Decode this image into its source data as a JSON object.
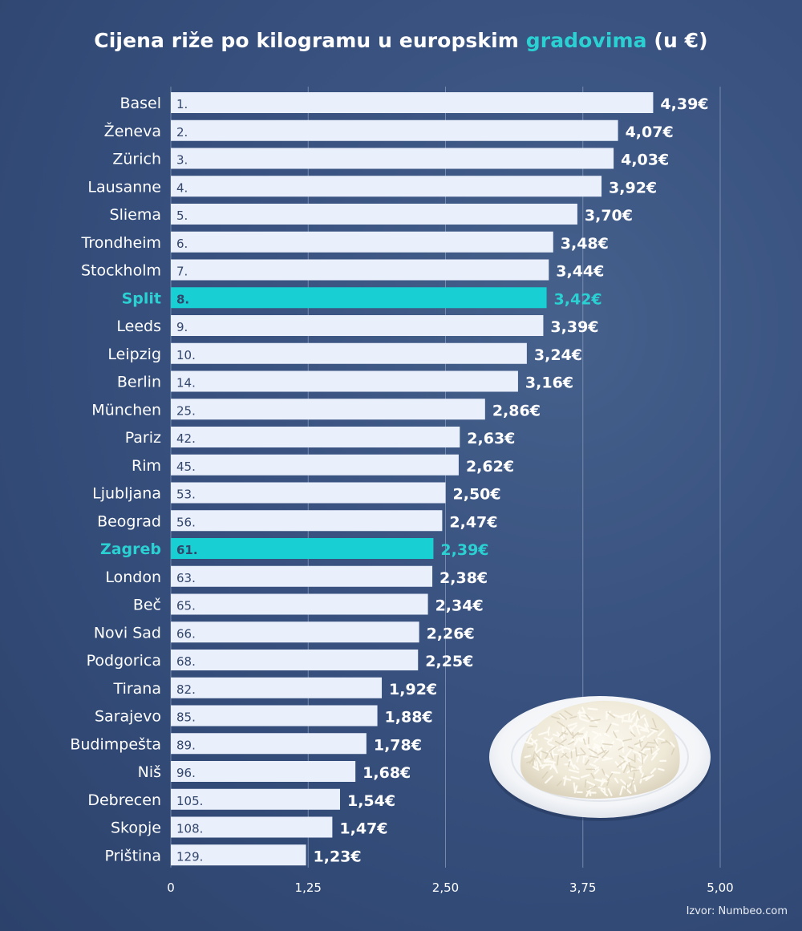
{
  "title": {
    "prefix": "Cijena riže po kilogramu u europskim ",
    "highlight": "gradovima",
    "suffix": " (u €)"
  },
  "source": "Izvor: Numbeo.com",
  "colors": {
    "bar": "#e9effb",
    "bar_highlight": "#18d0d4",
    "label": "#ffffff",
    "label_highlight": "#2ad0d2",
    "rank_text": "#33466b",
    "grid": "#8497b8"
  },
  "plate_icon": "plate-of-rice-icon",
  "chart_data": {
    "type": "bar",
    "orientation": "horizontal",
    "title": "Cijena riže po kilogramu u europskim gradovima (u €)",
    "xlim": [
      0,
      5
    ],
    "xticks": [
      0,
      1.25,
      2.5,
      3.75,
      5
    ],
    "xtick_labels": [
      "0",
      "1,25",
      "2,50",
      "3,75",
      "5,00"
    ],
    "grid": true,
    "categories": [
      "Basel",
      "Ženeva",
      "Zürich",
      "Lausanne",
      "Sliema",
      "Trondheim",
      "Stockholm",
      "Split",
      "Leeds",
      "Leipzig",
      "Berlin",
      "München",
      "Pariz",
      "Rim",
      "Ljubljana",
      "Beograd",
      "Zagreb",
      "London",
      "Beč",
      "Novi Sad",
      "Podgorica",
      "Tirana",
      "Sarajevo",
      "Budimpešta",
      "Niš",
      "Debrecen",
      "Skopje",
      "Priština"
    ],
    "ranks": [
      "1.",
      "2.",
      "3.",
      "4.",
      "5.",
      "6.",
      "7.",
      "8.",
      "9.",
      "10.",
      "14.",
      "25.",
      "42.",
      "45.",
      "53.",
      "56.",
      "61.",
      "63.",
      "65.",
      "66.",
      "68.",
      "82.",
      "85.",
      "89.",
      "96.",
      "105.",
      "108.",
      "129."
    ],
    "values": [
      4.39,
      4.07,
      4.03,
      3.92,
      3.7,
      3.48,
      3.44,
      3.42,
      3.39,
      3.24,
      3.16,
      2.86,
      2.63,
      2.62,
      2.5,
      2.47,
      2.39,
      2.38,
      2.34,
      2.26,
      2.25,
      1.92,
      1.88,
      1.78,
      1.68,
      1.54,
      1.47,
      1.23
    ],
    "value_labels": [
      "4,39€",
      "4,07€",
      "4,03€",
      "3,92€",
      "3,70€",
      "3,48€",
      "3,44€",
      "3,42€",
      "3,39€",
      "3,24€",
      "3,16€",
      "2,86€",
      "2,63€",
      "2,62€",
      "2,50€",
      "2,47€",
      "2,39€",
      "2,38€",
      "2,34€",
      "2,26€",
      "2,25€",
      "1,92€",
      "1,88€",
      "1,78€",
      "1,68€",
      "1,54€",
      "1,47€",
      "1,23€"
    ],
    "highlighted": [
      "Split",
      "Zagreb"
    ]
  }
}
